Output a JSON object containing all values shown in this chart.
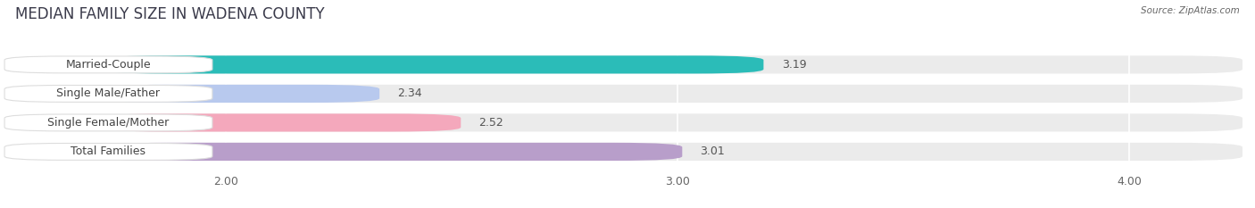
{
  "title": "MEDIAN FAMILY SIZE IN WADENA COUNTY",
  "source": "Source: ZipAtlas.com",
  "categories": [
    "Married-Couple",
    "Single Male/Father",
    "Single Female/Mother",
    "Total Families"
  ],
  "values": [
    3.19,
    2.34,
    2.52,
    3.01
  ],
  "bar_colors": [
    "#2bbcb8",
    "#b8c9ee",
    "#f4a8bc",
    "#b89eca"
  ],
  "xlim": [
    1.5,
    4.25
  ],
  "xticks": [
    2.0,
    3.0,
    4.0
  ],
  "xtick_labels": [
    "2.00",
    "3.00",
    "4.00"
  ],
  "bar_height": 0.62,
  "background_color": "#ffffff",
  "bar_background_color": "#ebebeb",
  "title_fontsize": 12,
  "label_fontsize": 9,
  "value_fontsize": 9,
  "tick_fontsize": 9
}
